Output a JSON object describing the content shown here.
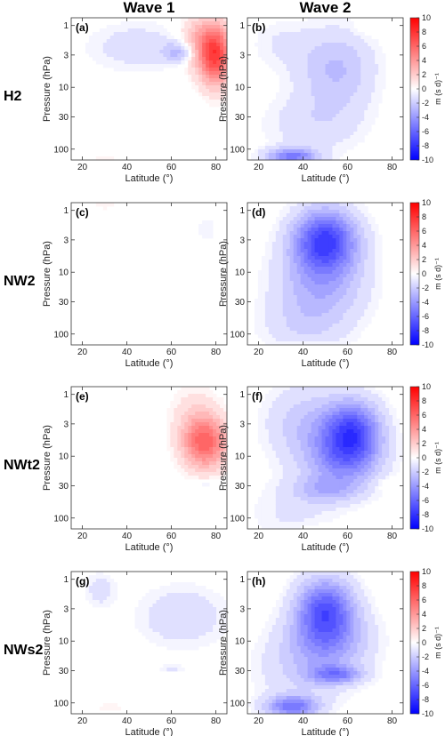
{
  "columns": [
    "Wave 1",
    "Wave 2"
  ],
  "rows": [
    "H2",
    "NW2",
    "NWt2",
    "NWs2"
  ],
  "colors": {
    "positive": "#ff0000",
    "negative": "#0000ff",
    "neutral": "#ffffff"
  },
  "chart_data": {
    "type": "heatmap",
    "xlabel": "Latitude (°)",
    "ylabel": "Pressure (hPa)",
    "x_ticks": [
      20,
      40,
      60,
      80
    ],
    "y_ticks": [
      1,
      3,
      10,
      30,
      100
    ],
    "xlim": [
      15,
      85
    ],
    "ylim_hPa": [
      150,
      0.75
    ],
    "y_scale": "log",
    "colorbar": {
      "ticks": [
        10,
        8,
        6,
        4,
        2,
        0,
        -2,
        -4,
        -6,
        -8,
        -10
      ],
      "range": [
        -10,
        10
      ],
      "unit": "m (s d)⁻¹",
      "colormap": "blue-white-red"
    },
    "panels": [
      {
        "label": "(a)",
        "row": "H2",
        "column": "Wave 1",
        "features": [
          {
            "lat": 80,
            "p": 3,
            "value": 7,
            "sx": 5,
            "sy": 0.35
          },
          {
            "lat": 72,
            "p": 2,
            "value": 3,
            "sx": 6,
            "sy": 0.3
          },
          {
            "lat": 64,
            "p": 2.7,
            "value": -3,
            "sx": 5,
            "sy": 0.12
          },
          {
            "lat": 45,
            "p": 2.2,
            "value": -1.3,
            "sx": 16,
            "sy": 0.28
          },
          {
            "lat": 30,
            "p": 150,
            "value": 0.6,
            "sx": 6,
            "sy": 0.08
          }
        ]
      },
      {
        "label": "(b)",
        "row": "H2",
        "column": "Wave 2",
        "features": [
          {
            "lat": 55,
            "p": 5,
            "value": -2.5,
            "sx": 12,
            "sy": 0.45
          },
          {
            "lat": 35,
            "p": 130,
            "value": -5,
            "sx": 8,
            "sy": 0.09
          },
          {
            "lat": 45,
            "p": 40,
            "value": -1.3,
            "sx": 16,
            "sy": 0.35
          },
          {
            "lat": 30,
            "p": 2,
            "value": -0.8,
            "sx": 10,
            "sy": 0.3
          },
          {
            "lat": 70,
            "p": 1.1,
            "value": 0.7,
            "sx": 4,
            "sy": 0.08
          }
        ]
      },
      {
        "label": "(c)",
        "row": "NW2",
        "column": "Wave 1",
        "features": [
          {
            "lat": 30,
            "p": 0.8,
            "value": 0.6,
            "sx": 6,
            "sy": 0.08
          },
          {
            "lat": 76,
            "p": 2,
            "value": -0.8,
            "sx": 3,
            "sy": 0.15
          }
        ]
      },
      {
        "label": "(d)",
        "row": "NW2",
        "column": "Wave 2",
        "features": [
          {
            "lat": 50,
            "p": 3,
            "value": -7,
            "sx": 10,
            "sy": 0.35
          },
          {
            "lat": 48,
            "p": 15,
            "value": -3,
            "sx": 14,
            "sy": 0.45
          },
          {
            "lat": 40,
            "p": 80,
            "value": -1.2,
            "sx": 14,
            "sy": 0.35
          },
          {
            "lat": 40,
            "p": 150,
            "value": 0.8,
            "sx": 8,
            "sy": 0.05
          }
        ]
      },
      {
        "label": "(e)",
        "row": "NWt2",
        "column": "Wave 1",
        "features": [
          {
            "lat": 75,
            "p": 6,
            "value": 6,
            "sx": 7,
            "sy": 0.3
          },
          {
            "lat": 70,
            "p": 2,
            "value": 1,
            "sx": 8,
            "sy": 0.35
          },
          {
            "lat": 75,
            "p": 28,
            "value": -1,
            "sx": 4,
            "sy": 0.06
          }
        ]
      },
      {
        "label": "(f)",
        "row": "NWt2",
        "column": "Wave 2",
        "features": [
          {
            "lat": 62,
            "p": 4,
            "value": -6.5,
            "sx": 9,
            "sy": 0.35
          },
          {
            "lat": 58,
            "p": 12,
            "value": -3.5,
            "sx": 12,
            "sy": 0.35
          },
          {
            "lat": 40,
            "p": 3,
            "value": -2,
            "sx": 12,
            "sy": 0.45
          },
          {
            "lat": 50,
            "p": 35,
            "value": -2,
            "sx": 10,
            "sy": 0.15
          },
          {
            "lat": 35,
            "p": 80,
            "value": -0.9,
            "sx": 14,
            "sy": 0.35
          },
          {
            "lat": 77,
            "p": 28,
            "value": 0.6,
            "sx": 4,
            "sy": 0.08
          },
          {
            "lat": 50,
            "p": 150,
            "value": 0.8,
            "sx": 8,
            "sy": 0.05
          }
        ]
      },
      {
        "label": "(g)",
        "row": "NWs2",
        "column": "Wave 1",
        "features": [
          {
            "lat": 28,
            "p": 1.5,
            "value": -1.2,
            "sx": 5,
            "sy": 0.2
          },
          {
            "lat": 65,
            "p": 4,
            "value": -1.5,
            "sx": 14,
            "sy": 0.35
          },
          {
            "lat": 60,
            "p": 28,
            "value": -0.8,
            "sx": 5,
            "sy": 0.05
          },
          {
            "lat": 32,
            "p": 120,
            "value": 0.6,
            "sx": 6,
            "sy": 0.08
          },
          {
            "lat": 62,
            "p": 0.75,
            "value": 0.6,
            "sx": 4,
            "sy": 0.05
          }
        ]
      },
      {
        "label": "(h)",
        "row": "NWs2",
        "column": "Wave 2",
        "features": [
          {
            "lat": 50,
            "p": 3,
            "value": -6,
            "sx": 9,
            "sy": 0.35
          },
          {
            "lat": 52,
            "p": 10,
            "value": -3,
            "sx": 13,
            "sy": 0.35
          },
          {
            "lat": 55,
            "p": 35,
            "value": -4,
            "sx": 8,
            "sy": 0.1
          },
          {
            "lat": 35,
            "p": 115,
            "value": -5,
            "sx": 8,
            "sy": 0.12
          },
          {
            "lat": 40,
            "p": 30,
            "value": -1.5,
            "sx": 15,
            "sy": 0.45
          }
        ]
      }
    ]
  }
}
